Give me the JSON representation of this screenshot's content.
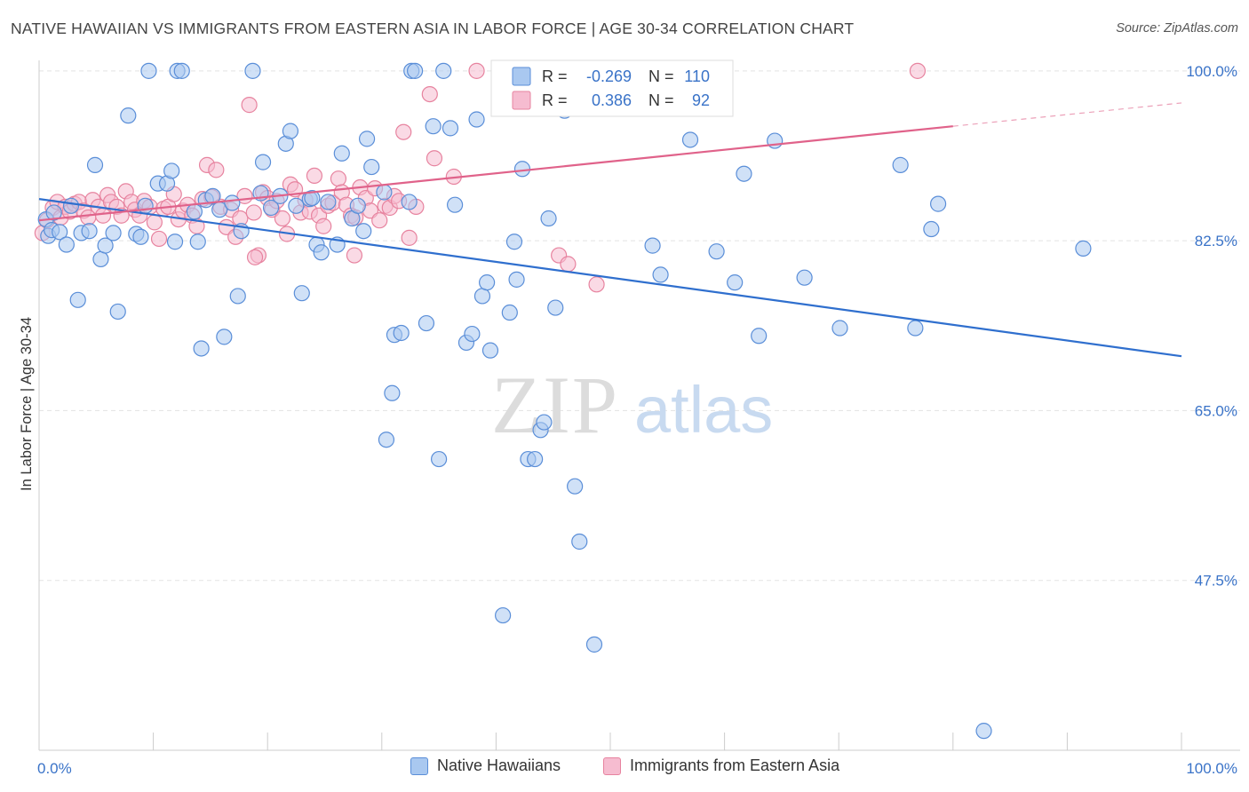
{
  "title": "NATIVE HAWAIIAN VS IMMIGRANTS FROM EASTERN ASIA IN LABOR FORCE | AGE 30-34 CORRELATION CHART",
  "source": "Source: ZipAtlas.com",
  "watermark": {
    "zip": "ZIP",
    "atlas": "atlas"
  },
  "colors": {
    "blue_fill": "#a9c8f0",
    "blue_stroke": "#5a8ed8",
    "blue_line": "#2f6fce",
    "pink_fill": "#f6bcd0",
    "pink_stroke": "#e7839f",
    "pink_line": "#e0628a",
    "axis_label": "#3a73c8",
    "grid": "#e3e3e3"
  },
  "stats_legend": {
    "rows": [
      {
        "r_label": "R =",
        "r_value": "-0.269",
        "n_label": "N =",
        "n_value": "110"
      },
      {
        "r_label": "R =",
        "r_value": "0.386",
        "n_label": "N =",
        "n_value": "92"
      }
    ]
  },
  "bottom_legend": [
    "Native Hawaiians",
    "Immigrants from Eastern Asia"
  ],
  "chart_data": {
    "type": "scatter",
    "xlabel": "",
    "ylabel": "In Labor Force | Age 30-34",
    "xlim": [
      0,
      100
    ],
    "ylim": [
      30,
      102
    ],
    "x_tick_labels": [
      "0.0%",
      "100.0%"
    ],
    "y_ticks": [
      47.5,
      65.0,
      82.5,
      100.0
    ],
    "y_tick_labels": [
      "47.5%",
      "65.0%",
      "82.5%",
      "100.0%"
    ],
    "grid": true,
    "legend_position": "top-center",
    "series": [
      {
        "name": "Native Hawaiians",
        "r": -0.269,
        "n": 110,
        "trend": {
          "x": [
            0,
            100
          ],
          "y": [
            86.8,
            70.6
          ]
        },
        "points": [
          [
            0.6,
            84.7
          ],
          [
            0.8,
            83.0
          ],
          [
            1.1,
            83.6
          ],
          [
            1.3,
            85.4
          ],
          [
            1.8,
            83.4
          ],
          [
            2.4,
            82.1
          ],
          [
            2.8,
            86.1
          ],
          [
            3.4,
            76.4
          ],
          [
            3.7,
            83.3
          ],
          [
            4.4,
            83.5
          ],
          [
            4.9,
            90.3
          ],
          [
            5.4,
            80.6
          ],
          [
            5.8,
            82.0
          ],
          [
            6.5,
            83.3
          ],
          [
            6.9,
            75.2
          ],
          [
            7.8,
            95.4
          ],
          [
            8.5,
            83.2
          ],
          [
            8.9,
            82.9
          ],
          [
            9.3,
            86.1
          ],
          [
            9.6,
            100.0
          ],
          [
            10.4,
            88.4
          ],
          [
            11.2,
            88.4
          ],
          [
            11.6,
            89.7
          ],
          [
            11.9,
            82.4
          ],
          [
            12.1,
            100.0
          ],
          [
            12.5,
            100.0
          ],
          [
            13.6,
            85.5
          ],
          [
            13.9,
            82.4
          ],
          [
            14.2,
            71.4
          ],
          [
            14.6,
            86.7
          ],
          [
            15.2,
            87.1
          ],
          [
            15.8,
            85.7
          ],
          [
            16.2,
            72.6
          ],
          [
            16.9,
            86.4
          ],
          [
            17.4,
            76.8
          ],
          [
            17.7,
            83.5
          ],
          [
            18.7,
            100.0
          ],
          [
            19.4,
            87.4
          ],
          [
            19.6,
            90.6
          ],
          [
            20.3,
            85.9
          ],
          [
            21.1,
            87.1
          ],
          [
            21.6,
            92.5
          ],
          [
            22.0,
            93.8
          ],
          [
            22.5,
            86.1
          ],
          [
            23.0,
            77.1
          ],
          [
            23.7,
            86.8
          ],
          [
            23.9,
            86.9
          ],
          [
            24.3,
            82.1
          ],
          [
            24.7,
            81.3
          ],
          [
            25.3,
            86.5
          ],
          [
            26.1,
            82.1
          ],
          [
            26.5,
            91.5
          ],
          [
            27.4,
            84.8
          ],
          [
            27.9,
            86.1
          ],
          [
            28.4,
            83.5
          ],
          [
            28.7,
            93.0
          ],
          [
            29.1,
            90.1
          ],
          [
            30.2,
            87.5
          ],
          [
            30.4,
            62.0
          ],
          [
            30.9,
            66.8
          ],
          [
            31.1,
            72.8
          ],
          [
            31.7,
            73.0
          ],
          [
            32.4,
            86.5
          ],
          [
            32.6,
            100.0
          ],
          [
            32.9,
            100.0
          ],
          [
            33.9,
            74.0
          ],
          [
            34.5,
            94.3
          ],
          [
            35.0,
            60.0
          ],
          [
            35.4,
            100.0
          ],
          [
            36.0,
            94.1
          ],
          [
            36.4,
            86.2
          ],
          [
            37.4,
            72.0
          ],
          [
            37.9,
            72.9
          ],
          [
            38.3,
            95.0
          ],
          [
            38.8,
            76.8
          ],
          [
            39.2,
            78.2
          ],
          [
            39.5,
            71.2
          ],
          [
            40.6,
            43.9
          ],
          [
            41.2,
            75.1
          ],
          [
            41.6,
            82.4
          ],
          [
            41.8,
            78.5
          ],
          [
            42.3,
            89.9
          ],
          [
            42.8,
            60.0
          ],
          [
            43.4,
            60.0
          ],
          [
            43.9,
            63.0
          ],
          [
            44.2,
            63.8
          ],
          [
            44.6,
            84.8
          ],
          [
            45.2,
            75.6
          ],
          [
            46.0,
            95.9
          ],
          [
            46.9,
            57.2
          ],
          [
            47.3,
            51.5
          ],
          [
            48.6,
            40.9
          ],
          [
            53.7,
            82.0
          ],
          [
            54.4,
            79.0
          ],
          [
            56.1,
            100.0
          ],
          [
            57.0,
            92.9
          ],
          [
            59.3,
            81.4
          ],
          [
            60.9,
            78.2
          ],
          [
            61.7,
            89.4
          ],
          [
            63.0,
            72.7
          ],
          [
            64.4,
            92.8
          ],
          [
            67.0,
            78.7
          ],
          [
            70.1,
            73.5
          ],
          [
            75.4,
            90.3
          ],
          [
            76.7,
            73.5
          ],
          [
            78.1,
            83.7
          ],
          [
            78.7,
            86.3
          ],
          [
            82.7,
            32.0
          ],
          [
            91.4,
            81.7
          ]
        ]
      },
      {
        "name": "Immigrants from Eastern Asia",
        "r": 0.386,
        "n": 92,
        "trend": {
          "x": [
            0,
            80
          ],
          "y": [
            84.6,
            94.3
          ]
        },
        "trend_dashed": {
          "x": [
            80,
            100
          ],
          "y": [
            94.3,
            96.7
          ]
        },
        "points": [
          [
            0.3,
            83.3
          ],
          [
            0.7,
            84.6
          ],
          [
            1.2,
            85.9
          ],
          [
            1.6,
            86.5
          ],
          [
            1.9,
            84.9
          ],
          [
            2.3,
            86.0
          ],
          [
            2.7,
            85.5
          ],
          [
            3.1,
            86.3
          ],
          [
            3.5,
            86.5
          ],
          [
            3.9,
            85.6
          ],
          [
            4.3,
            84.9
          ],
          [
            4.7,
            86.7
          ],
          [
            5.2,
            86.0
          ],
          [
            5.6,
            85.1
          ],
          [
            6.0,
            87.2
          ],
          [
            6.3,
            86.5
          ],
          [
            6.8,
            86.0
          ],
          [
            7.2,
            85.1
          ],
          [
            7.6,
            87.6
          ],
          [
            8.1,
            86.5
          ],
          [
            8.4,
            85.7
          ],
          [
            8.8,
            85.1
          ],
          [
            9.2,
            86.6
          ],
          [
            9.7,
            86.0
          ],
          [
            10.1,
            84.4
          ],
          [
            10.5,
            82.7
          ],
          [
            10.9,
            85.8
          ],
          [
            11.3,
            86.0
          ],
          [
            11.8,
            87.3
          ],
          [
            12.2,
            84.7
          ],
          [
            12.6,
            85.6
          ],
          [
            13.0,
            86.2
          ],
          [
            13.4,
            85.1
          ],
          [
            13.8,
            84.0
          ],
          [
            14.3,
            86.8
          ],
          [
            14.7,
            90.3
          ],
          [
            15.1,
            87.0
          ],
          [
            15.5,
            89.8
          ],
          [
            15.9,
            86.0
          ],
          [
            16.4,
            83.9
          ],
          [
            16.8,
            85.7
          ],
          [
            17.2,
            82.9
          ],
          [
            17.6,
            84.8
          ],
          [
            18.0,
            87.1
          ],
          [
            18.4,
            96.5
          ],
          [
            18.8,
            85.4
          ],
          [
            19.2,
            81.0
          ],
          [
            19.6,
            87.5
          ],
          [
            20.0,
            86.9
          ],
          [
            20.4,
            85.7
          ],
          [
            20.8,
            86.6
          ],
          [
            21.3,
            84.8
          ],
          [
            21.7,
            83.2
          ],
          [
            22.0,
            88.3
          ],
          [
            22.4,
            87.8
          ],
          [
            22.9,
            85.4
          ],
          [
            23.3,
            86.7
          ],
          [
            23.7,
            85.5
          ],
          [
            24.1,
            89.2
          ],
          [
            24.5,
            85.1
          ],
          [
            24.9,
            84.0
          ],
          [
            25.3,
            86.1
          ],
          [
            25.7,
            86.4
          ],
          [
            26.2,
            88.9
          ],
          [
            26.5,
            87.5
          ],
          [
            26.9,
            86.2
          ],
          [
            27.3,
            85.1
          ],
          [
            27.7,
            84.9
          ],
          [
            28.1,
            88.0
          ],
          [
            28.6,
            86.9
          ],
          [
            29.0,
            85.6
          ],
          [
            29.4,
            87.9
          ],
          [
            29.8,
            84.6
          ],
          [
            30.3,
            86.1
          ],
          [
            30.7,
            85.9
          ],
          [
            31.1,
            87.1
          ],
          [
            31.5,
            86.6
          ],
          [
            31.9,
            93.7
          ],
          [
            32.4,
            82.8
          ],
          [
            33.0,
            86.0
          ],
          [
            34.2,
            97.6
          ],
          [
            34.6,
            91.0
          ],
          [
            36.3,
            89.1
          ],
          [
            27.6,
            81.0
          ],
          [
            18.9,
            80.8
          ],
          [
            38.3,
            100.0
          ],
          [
            42.2,
            100.0
          ],
          [
            47.2,
            100.0
          ],
          [
            45.5,
            81.0
          ],
          [
            46.3,
            80.1
          ],
          [
            48.8,
            78.0
          ],
          [
            76.9,
            100.0
          ]
        ]
      }
    ]
  }
}
